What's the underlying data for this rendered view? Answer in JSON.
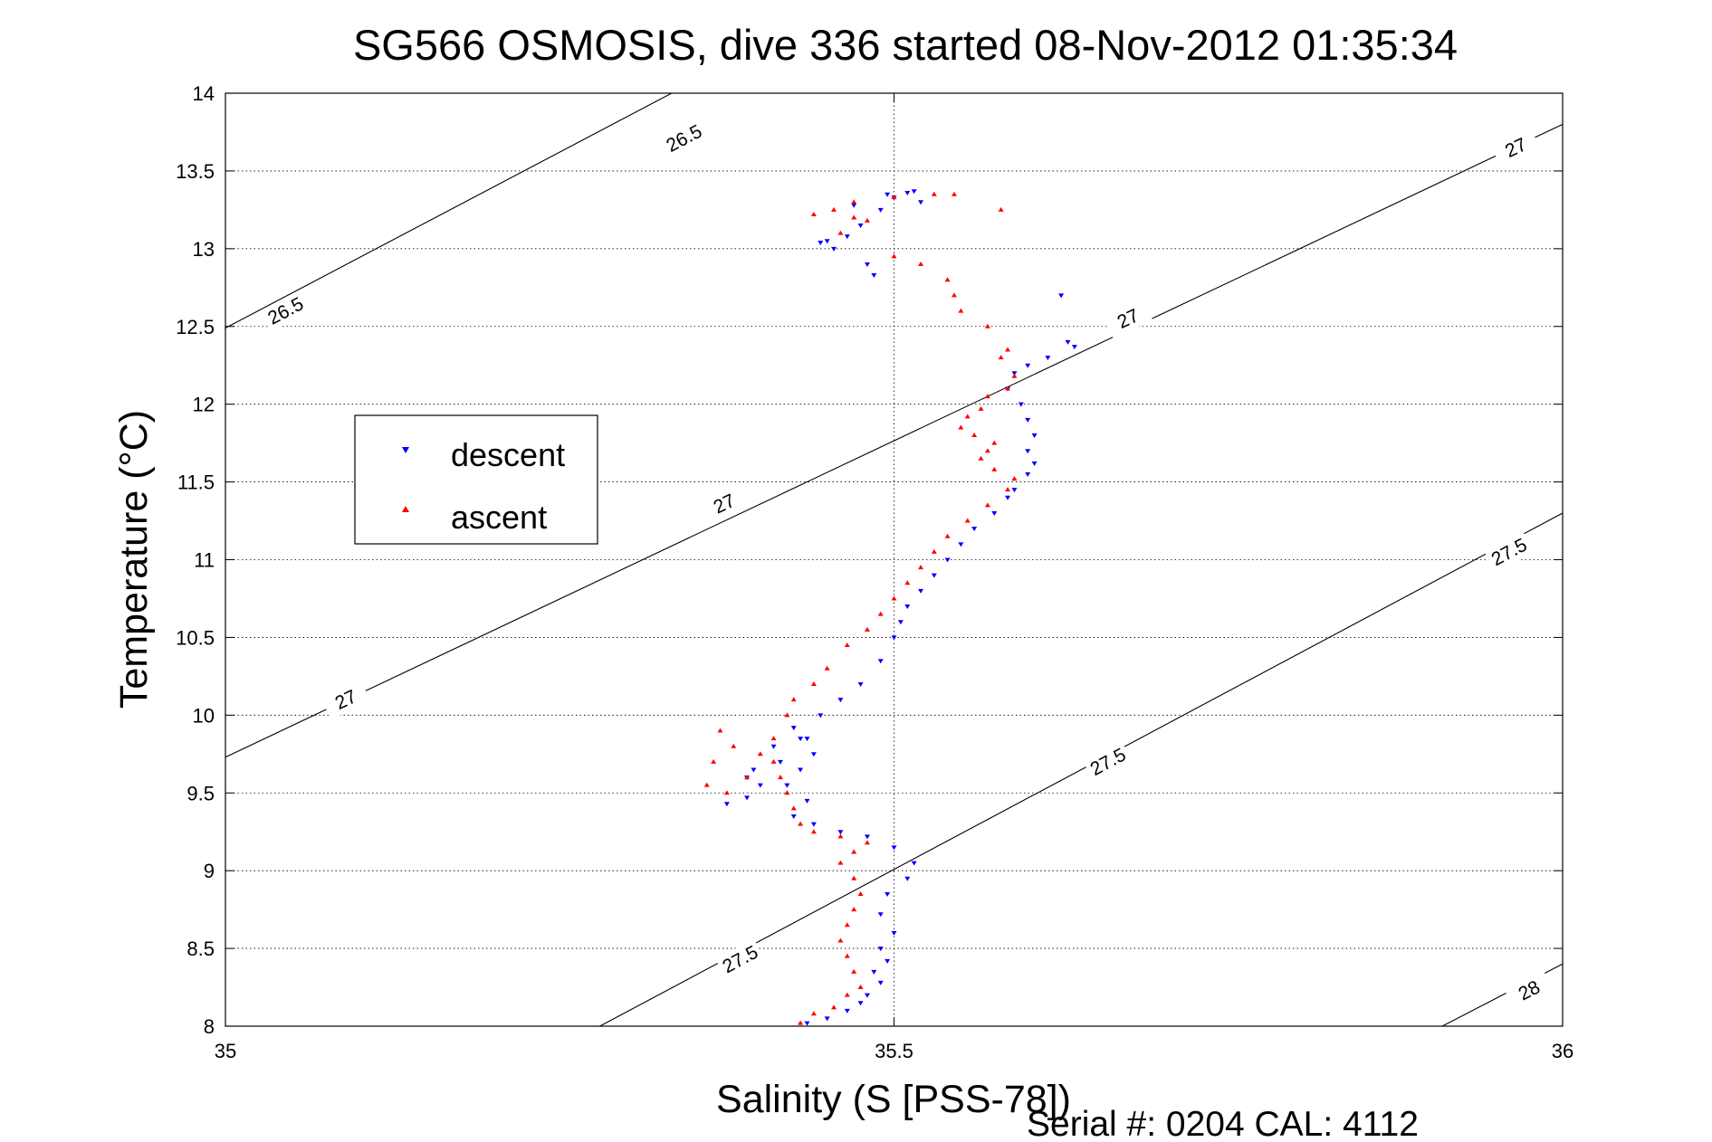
{
  "chart_data": {
    "type": "scatter",
    "title": "SG566 OSMOSIS, dive 336 started 08-Nov-2012 01:35:34",
    "xlabel": "Salinity (S [PSS-78])",
    "ylabel": "Temperature (°C)",
    "footer": "Serial #: 0204  CAL: 4112",
    "xlim": [
      35,
      36
    ],
    "ylim": [
      8,
      14
    ],
    "xticks": [
      35,
      35.5,
      36
    ],
    "xtick_labels": [
      "35",
      "35.5",
      "36"
    ],
    "yticks": [
      8,
      8.5,
      9,
      9.5,
      10,
      10.5,
      11,
      11.5,
      12,
      12.5,
      13,
      13.5,
      14
    ],
    "ytick_labels": [
      "8",
      "8.5",
      "9",
      "9.5",
      "10",
      "10.5",
      "11",
      "11.5",
      "12",
      "12.5",
      "13",
      "13.5",
      "14"
    ],
    "grid": true,
    "legend_position": "left",
    "legend": [
      {
        "name": "descent",
        "color": "#0000ff",
        "marker": "triangle-down"
      },
      {
        "name": "ascent",
        "color": "#ff0000",
        "marker": "triangle-up"
      }
    ],
    "isopycnals": [
      {
        "level": 26.5,
        "label": "26.5",
        "points": [
          [
            35.0,
            12.49
          ],
          [
            35.4,
            14.3
          ]
        ],
        "label_at": [
          [
            35.045,
            12.6
          ],
          [
            35.343,
            13.71
          ]
        ]
      },
      {
        "level": 27,
        "label": "27",
        "points": [
          [
            35.0,
            9.73
          ],
          [
            36.0,
            13.8
          ]
        ],
        "label_at": [
          [
            35.09,
            10.1
          ],
          [
            35.373,
            11.36
          ],
          [
            35.675,
            12.55
          ],
          [
            35.965,
            13.65
          ]
        ]
      },
      {
        "level": 27.5,
        "label": "27.5",
        "points": [
          [
            35.28,
            8.0
          ],
          [
            36.0,
            11.3
          ]
        ],
        "label_at": [
          [
            35.385,
            8.43
          ],
          [
            35.66,
            9.7
          ],
          [
            35.96,
            11.05
          ]
        ]
      },
      {
        "level": 28,
        "label": "28",
        "points": [
          [
            35.91,
            8.0
          ],
          [
            36.0,
            8.4
          ]
        ],
        "label_at": [
          [
            35.975,
            8.23
          ]
        ]
      }
    ],
    "series": [
      {
        "name": "descent",
        "color": "#0000ff",
        "marker": "triangle-down",
        "points": [
          [
            35.435,
            8.02
          ],
          [
            35.45,
            8.05
          ],
          [
            35.465,
            8.1
          ],
          [
            35.475,
            8.15
          ],
          [
            35.48,
            8.2
          ],
          [
            35.49,
            8.28
          ],
          [
            35.485,
            8.35
          ],
          [
            35.495,
            8.42
          ],
          [
            35.49,
            8.5
          ],
          [
            35.5,
            8.6
          ],
          [
            35.49,
            8.72
          ],
          [
            35.495,
            8.85
          ],
          [
            35.51,
            8.95
          ],
          [
            35.515,
            9.05
          ],
          [
            35.5,
            9.15
          ],
          [
            35.48,
            9.22
          ],
          [
            35.46,
            9.25
          ],
          [
            35.44,
            9.3
          ],
          [
            35.425,
            9.35
          ],
          [
            35.435,
            9.45
          ],
          [
            35.42,
            9.55
          ],
          [
            35.43,
            9.65
          ],
          [
            35.44,
            9.75
          ],
          [
            35.435,
            9.85
          ],
          [
            35.425,
            9.92
          ],
          [
            35.41,
            9.8
          ],
          [
            35.395,
            9.65
          ],
          [
            35.4,
            9.55
          ],
          [
            35.39,
            9.47
          ],
          [
            35.375,
            9.43
          ],
          [
            35.39,
            9.6
          ],
          [
            35.415,
            9.7
          ],
          [
            35.43,
            9.85
          ],
          [
            35.445,
            10.0
          ],
          [
            35.46,
            10.1
          ],
          [
            35.475,
            10.2
          ],
          [
            35.49,
            10.35
          ],
          [
            35.5,
            10.5
          ],
          [
            35.505,
            10.6
          ],
          [
            35.51,
            10.7
          ],
          [
            35.52,
            10.8
          ],
          [
            35.53,
            10.9
          ],
          [
            35.54,
            11.0
          ],
          [
            35.55,
            11.1
          ],
          [
            35.56,
            11.2
          ],
          [
            35.575,
            11.3
          ],
          [
            35.585,
            11.4
          ],
          [
            35.59,
            11.45
          ],
          [
            35.6,
            11.55
          ],
          [
            35.605,
            11.62
          ],
          [
            35.6,
            11.7
          ],
          [
            35.605,
            11.8
          ],
          [
            35.6,
            11.9
          ],
          [
            35.595,
            12.0
          ],
          [
            35.585,
            12.1
          ],
          [
            35.59,
            12.2
          ],
          [
            35.6,
            12.25
          ],
          [
            35.615,
            12.3
          ],
          [
            35.635,
            12.37
          ],
          [
            35.63,
            12.4
          ],
          [
            35.625,
            12.7
          ],
          [
            35.485,
            12.83
          ],
          [
            35.48,
            12.9
          ],
          [
            35.465,
            13.08
          ],
          [
            35.45,
            13.05
          ],
          [
            35.455,
            13.0
          ],
          [
            35.445,
            13.04
          ],
          [
            35.475,
            13.15
          ],
          [
            35.49,
            13.25
          ],
          [
            35.5,
            13.33
          ],
          [
            35.515,
            13.37
          ],
          [
            35.52,
            13.3
          ],
          [
            35.495,
            13.35
          ],
          [
            35.51,
            13.36
          ],
          [
            35.47,
            13.28
          ]
        ]
      },
      {
        "name": "ascent",
        "color": "#ff0000",
        "marker": "triangle-up",
        "points": [
          [
            35.43,
            8.02
          ],
          [
            35.44,
            8.08
          ],
          [
            35.455,
            8.12
          ],
          [
            35.465,
            8.2
          ],
          [
            35.475,
            8.25
          ],
          [
            35.47,
            8.35
          ],
          [
            35.465,
            8.45
          ],
          [
            35.46,
            8.55
          ],
          [
            35.465,
            8.65
          ],
          [
            35.47,
            8.75
          ],
          [
            35.475,
            8.85
          ],
          [
            35.47,
            8.95
          ],
          [
            35.46,
            9.05
          ],
          [
            35.47,
            9.12
          ],
          [
            35.48,
            9.18
          ],
          [
            35.46,
            9.22
          ],
          [
            35.44,
            9.25
          ],
          [
            35.43,
            9.3
          ],
          [
            35.425,
            9.4
          ],
          [
            35.42,
            9.5
          ],
          [
            35.415,
            9.6
          ],
          [
            35.41,
            9.7
          ],
          [
            35.4,
            9.75
          ],
          [
            35.38,
            9.8
          ],
          [
            35.37,
            9.9
          ],
          [
            35.365,
            9.7
          ],
          [
            35.36,
            9.55
          ],
          [
            35.375,
            9.5
          ],
          [
            35.39,
            9.6
          ],
          [
            35.41,
            9.85
          ],
          [
            35.42,
            10.0
          ],
          [
            35.425,
            10.1
          ],
          [
            35.44,
            10.2
          ],
          [
            35.45,
            10.3
          ],
          [
            35.465,
            10.45
          ],
          [
            35.48,
            10.55
          ],
          [
            35.49,
            10.65
          ],
          [
            35.5,
            10.75
          ],
          [
            35.51,
            10.85
          ],
          [
            35.52,
            10.95
          ],
          [
            35.53,
            11.05
          ],
          [
            35.54,
            11.15
          ],
          [
            35.555,
            11.25
          ],
          [
            35.57,
            11.35
          ],
          [
            35.585,
            11.45
          ],
          [
            35.59,
            11.52
          ],
          [
            35.575,
            11.58
          ],
          [
            35.565,
            11.65
          ],
          [
            35.57,
            11.7
          ],
          [
            35.575,
            11.75
          ],
          [
            35.56,
            11.8
          ],
          [
            35.55,
            11.85
          ],
          [
            35.555,
            11.92
          ],
          [
            35.565,
            11.97
          ],
          [
            35.57,
            12.05
          ],
          [
            35.585,
            12.1
          ],
          [
            35.59,
            12.18
          ],
          [
            35.58,
            12.3
          ],
          [
            35.585,
            12.35
          ],
          [
            35.57,
            12.5
          ],
          [
            35.55,
            12.6
          ],
          [
            35.545,
            12.7
          ],
          [
            35.54,
            12.8
          ],
          [
            35.52,
            12.9
          ],
          [
            35.5,
            12.95
          ],
          [
            35.46,
            13.1
          ],
          [
            35.47,
            13.2
          ],
          [
            35.455,
            13.25
          ],
          [
            35.47,
            13.3
          ],
          [
            35.5,
            13.33
          ],
          [
            35.53,
            13.35
          ],
          [
            35.545,
            13.35
          ],
          [
            35.58,
            13.25
          ],
          [
            35.44,
            13.22
          ],
          [
            35.48,
            13.18
          ]
        ]
      }
    ]
  }
}
